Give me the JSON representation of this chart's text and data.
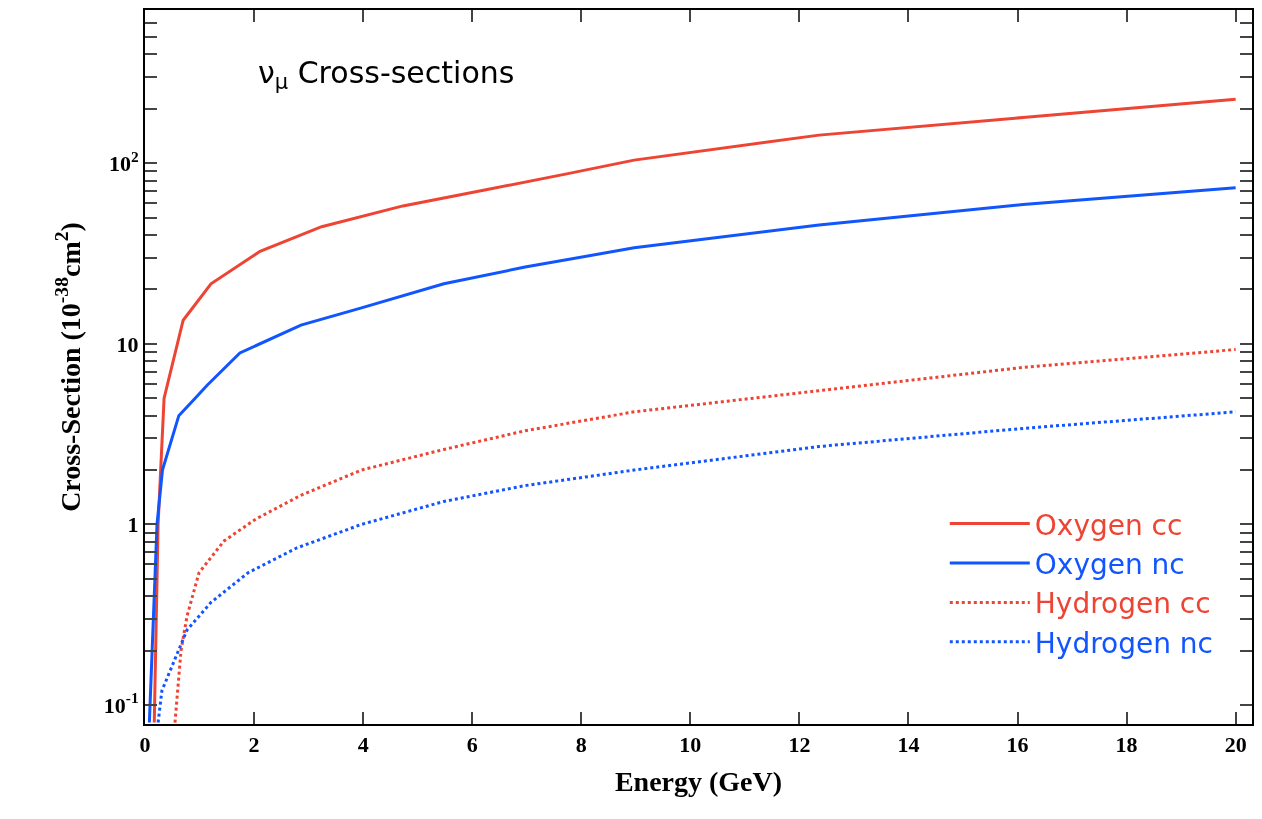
{
  "chart_data": {
    "type": "line",
    "title": "ν$_{μ}$ Cross-sections",
    "xlabel": "Energy (GeV)",
    "ylabel": "Cross-Section (10$^{-38}$cm$^{2}$)",
    "log": "y",
    "xlim": [
      0,
      20.3
    ],
    "ylim": [
      0.0785,
      705
    ],
    "xticks": [
      0,
      2,
      4,
      6,
      8,
      10,
      12,
      14,
      16,
      18,
      20
    ],
    "yticks": [
      {
        "value": 0.1,
        "label": "10$^{-1}$"
      },
      {
        "value": 0.2,
        "label": null
      },
      {
        "value": 0.3,
        "label": null
      },
      {
        "value": 0.4,
        "label": null
      },
      {
        "value": 0.5,
        "label": null
      },
      {
        "value": 0.6,
        "label": null
      },
      {
        "value": 0.7,
        "label": null
      },
      {
        "value": 0.8,
        "label": null
      },
      {
        "value": 0.9,
        "label": null
      },
      1,
      {
        "value": 2,
        "label": null
      },
      {
        "value": 3,
        "label": null
      },
      {
        "value": 4,
        "label": null
      },
      {
        "value": 5,
        "label": null
      },
      {
        "value": 6,
        "label": null
      },
      {
        "value": 7,
        "label": null
      },
      {
        "value": 8,
        "label": null
      },
      {
        "value": 9,
        "label": null
      },
      10,
      {
        "value": 20,
        "label": null
      },
      {
        "value": 30,
        "label": null
      },
      {
        "value": 40,
        "label": null
      },
      {
        "value": 50,
        "label": null
      },
      {
        "value": 60,
        "label": null
      },
      {
        "value": 70,
        "label": null
      },
      {
        "value": 80,
        "label": null
      },
      {
        "value": 90,
        "label": null
      },
      {
        "value": 100,
        "label": "10$^{2}$"
      },
      {
        "value": 200,
        "label": null
      },
      {
        "value": 300,
        "label": null
      },
      {
        "value": 400,
        "label": null
      },
      {
        "value": 500,
        "label": null
      },
      {
        "value": 600,
        "label": null
      }
    ],
    "legend": "bottom right",
    "marker": "none",
    "series": [
      {
        "name": "Oxygen cc",
        "color": "#ee4433",
        "line_style": "solid",
        "x": [
          0.17,
          0.24,
          0.35,
          0.7,
          1.21,
          2.11,
          3.24,
          4.73,
          6.23,
          7.71,
          8.97,
          12.36,
          16.1,
          20.0
        ],
        "values": [
          0.08,
          1.0,
          5.0,
          13.5,
          21.5,
          32.5,
          44.5,
          58,
          71,
          87,
          104,
          143,
          179,
          226
        ]
      },
      {
        "name": "Oxygen nc",
        "color": "#1155ff",
        "line_style": "solid",
        "x": [
          0.08,
          0.22,
          0.32,
          0.62,
          0.92,
          1.14,
          1.74,
          2.86,
          3.97,
          5.48,
          6.97,
          8.97,
          12.36,
          16.1,
          20.0
        ],
        "values": [
          0.08,
          1.0,
          2.0,
          4.0,
          5.0,
          5.9,
          8.9,
          12.7,
          15.8,
          21.5,
          26.6,
          34,
          45.5,
          59,
          73
        ]
      },
      {
        "name": "Hydrogen cc",
        "color": "#ee4433",
        "line_style": "dotted",
        "x": [
          0.55,
          0.66,
          0.77,
          0.99,
          1.45,
          2.03,
          2.86,
          3.97,
          5.48,
          6.97,
          8.97,
          12.36,
          16.1,
          20.0
        ],
        "values": [
          0.08,
          0.2,
          0.31,
          0.54,
          0.81,
          1.07,
          1.45,
          2.0,
          2.6,
          3.3,
          4.2,
          5.5,
          7.4,
          9.3
        ]
      },
      {
        "name": "Hydrogen nc",
        "color": "#1155ff",
        "line_style": "dotted",
        "x": [
          0.24,
          0.31,
          0.55,
          0.77,
          1.21,
          1.89,
          2.78,
          3.97,
          5.48,
          6.97,
          8.97,
          12.36,
          16.1,
          20.0
        ],
        "values": [
          0.08,
          0.12,
          0.18,
          0.26,
          0.37,
          0.54,
          0.74,
          1.0,
          1.34,
          1.64,
          2.0,
          2.7,
          3.4,
          4.2
        ]
      }
    ]
  }
}
